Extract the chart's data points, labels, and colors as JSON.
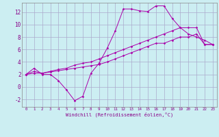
{
  "xlabel": "Windchill (Refroidissement éolien,°C)",
  "xlim": [
    -0.5,
    23.5
  ],
  "ylim": [
    -3.2,
    13.5
  ],
  "yticks": [
    -2,
    0,
    2,
    4,
    6,
    8,
    10,
    12
  ],
  "xticks": [
    0,
    1,
    2,
    3,
    4,
    5,
    6,
    7,
    8,
    9,
    10,
    11,
    12,
    13,
    14,
    15,
    16,
    17,
    18,
    19,
    20,
    21,
    22,
    23
  ],
  "bg_color": "#cceef2",
  "line_color": "#aa00aa",
  "grid_color": "#aaaacc",
  "line1_x": [
    0,
    1,
    2,
    3,
    4,
    5,
    6,
    7,
    8,
    9,
    10,
    11,
    12,
    13,
    14,
    15,
    16,
    17,
    18,
    19,
    20,
    21,
    22,
    23
  ],
  "line1_y": [
    2.0,
    3.0,
    2.0,
    2.0,
    1.0,
    -0.5,
    -2.2,
    -1.5,
    2.2,
    3.8,
    6.2,
    9.0,
    12.5,
    12.5,
    12.2,
    12.1,
    13.0,
    13.0,
    11.0,
    9.5,
    8.5,
    8.0,
    7.5,
    6.8
  ],
  "line2_x": [
    0,
    1,
    2,
    3,
    4,
    5,
    6,
    7,
    8,
    9,
    10,
    11,
    12,
    13,
    14,
    15,
    16,
    17,
    18,
    19,
    20,
    21,
    22,
    23
  ],
  "line2_y": [
    2.0,
    2.5,
    2.2,
    2.5,
    2.8,
    3.0,
    3.5,
    3.8,
    4.0,
    4.5,
    5.0,
    5.5,
    6.0,
    6.5,
    7.0,
    7.5,
    8.0,
    8.5,
    9.0,
    9.5,
    9.5,
    9.5,
    6.8,
    6.8
  ],
  "line3_x": [
    0,
    1,
    2,
    3,
    4,
    5,
    6,
    7,
    8,
    9,
    10,
    11,
    12,
    13,
    14,
    15,
    16,
    17,
    18,
    19,
    20,
    21,
    22,
    23
  ],
  "line3_y": [
    2.0,
    2.2,
    2.2,
    2.4,
    2.6,
    2.8,
    3.0,
    3.2,
    3.4,
    3.6,
    4.0,
    4.5,
    5.0,
    5.5,
    6.0,
    6.5,
    7.0,
    7.0,
    7.5,
    8.0,
    8.0,
    8.5,
    6.8,
    6.8
  ]
}
